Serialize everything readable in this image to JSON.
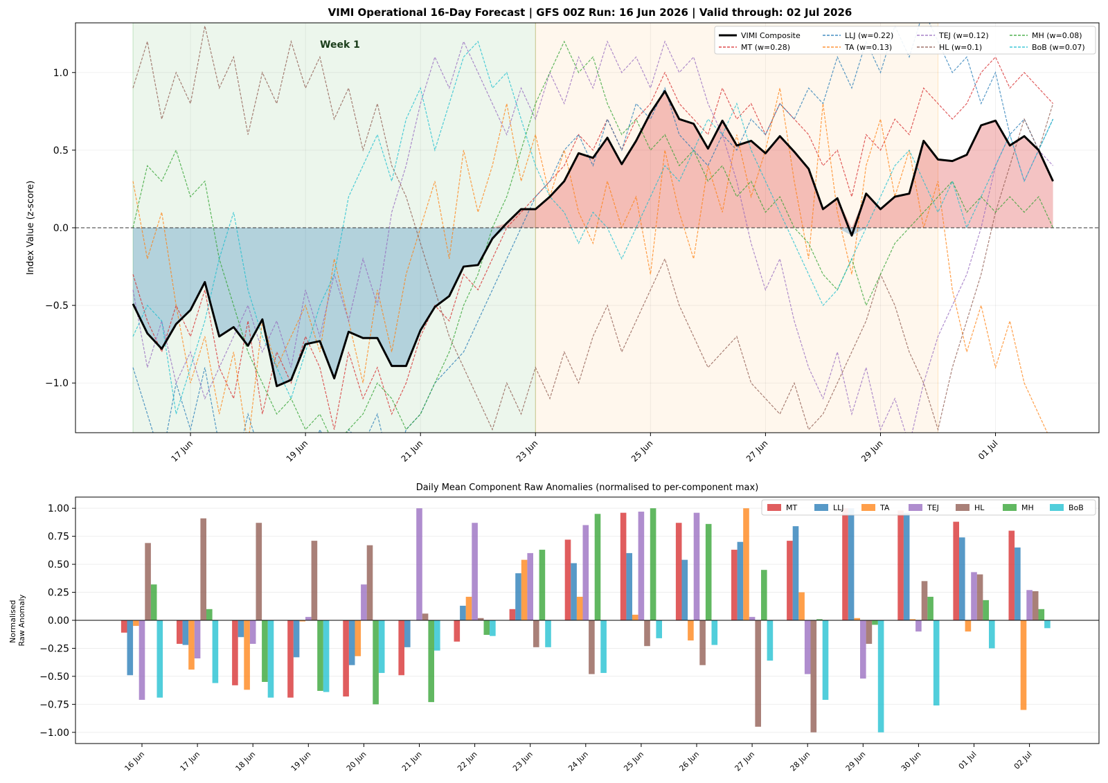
{
  "chart_data": [
    {
      "type": "line",
      "title": "VIMI Operational 16-Day Forecast  |  GFS 00Z Run: 16 Jun 2026  |  Valid through: 02 Jul 2026",
      "xlabel": "",
      "ylabel": "Index Value (z-score)",
      "x_start": "16 Jun 2026",
      "x_end": "02 Jul 2026",
      "xlim": [
        -1.0,
        16.8
      ],
      "ylim": [
        -1.32,
        1.32
      ],
      "yticks": [
        "−1.0",
        "−0.5",
        "0.0",
        "0.5",
        "1.0"
      ],
      "ytick_values": [
        -1.0,
        -0.5,
        0.0,
        0.5,
        1.0
      ],
      "xticks": [
        "17 Jun",
        "19 Jun",
        "21 Jun",
        "23 Jun",
        "25 Jun",
        "27 Jun",
        "29 Jun",
        "01 Jul"
      ],
      "xtick_values": [
        1,
        3,
        5,
        7,
        9,
        11,
        13,
        15
      ],
      "shaded_periods": [
        {
          "label": "Week 1",
          "start": 0,
          "end": 7,
          "color": "#2ca02c"
        },
        {
          "label": "",
          "start": 7,
          "end": 14,
          "color": "#ff9f1c"
        }
      ],
      "grid": true,
      "legend_position": "top-right",
      "composite": {
        "name": "VIMI Composite",
        "color": "#000000",
        "values": [
          -0.49,
          -0.68,
          -0.78,
          -0.62,
          -0.53,
          -0.35,
          -0.7,
          -0.64,
          -0.76,
          -0.59,
          -1.02,
          -0.98,
          -0.75,
          -0.73,
          -0.97,
          -0.67,
          -0.71,
          -0.71,
          -0.89,
          -0.89,
          -0.66,
          -0.51,
          -0.44,
          -0.25,
          -0.24,
          -0.07,
          0.03,
          0.12,
          0.12,
          0.2,
          0.3,
          0.48,
          0.45,
          0.58,
          0.41,
          0.56,
          0.74,
          0.88,
          0.7,
          0.67,
          0.51,
          0.69,
          0.53,
          0.56,
          0.48,
          0.59,
          0.49,
          0.38,
          0.12,
          0.19,
          -0.05,
          0.22,
          0.12,
          0.2,
          0.22,
          0.56,
          0.44,
          0.43,
          0.47,
          0.66,
          0.69,
          0.53,
          0.59,
          0.5,
          0.3
        ]
      },
      "series": [
        {
          "name": "MT (w=0.28)",
          "color": "#d62728",
          "values": [
            -0.3,
            -0.6,
            -0.8,
            -0.5,
            -0.7,
            -0.4,
            -0.9,
            -1.1,
            -0.6,
            -1.2,
            -0.8,
            -1.0,
            -0.7,
            -0.9,
            -1.3,
            -0.8,
            -1.1,
            -0.9,
            -1.2,
            -1.0,
            -0.7,
            -0.5,
            -0.6,
            -0.3,
            -0.4,
            -0.2,
            0.0,
            0.1,
            0.2,
            0.3,
            0.4,
            0.6,
            0.5,
            0.7,
            0.5,
            0.7,
            0.8,
            1.0,
            0.8,
            0.7,
            0.6,
            0.9,
            0.7,
            0.8,
            0.6,
            0.8,
            0.7,
            0.6,
            0.4,
            0.5,
            0.2,
            0.6,
            0.5,
            0.7,
            0.6,
            0.9,
            0.8,
            0.7,
            0.8,
            1.0,
            1.1,
            0.9,
            1.0,
            0.9,
            0.8
          ]
        },
        {
          "name": "LLJ (w=0.22)",
          "color": "#1f77b4",
          "values": [
            -0.9,
            -1.2,
            -1.5,
            -1.0,
            -1.3,
            -0.9,
            -1.4,
            -1.6,
            -1.2,
            -1.5,
            -1.7,
            -1.4,
            -1.6,
            -1.3,
            -1.5,
            -1.3,
            -1.4,
            -1.2,
            -1.6,
            -1.3,
            -1.2,
            -1.0,
            -0.9,
            -0.8,
            -0.6,
            -0.4,
            -0.2,
            0.0,
            0.2,
            0.3,
            0.5,
            0.6,
            0.4,
            0.7,
            0.5,
            0.8,
            0.7,
            0.9,
            0.6,
            0.5,
            0.4,
            0.6,
            0.5,
            0.7,
            0.6,
            0.8,
            0.7,
            0.9,
            0.8,
            1.1,
            0.9,
            1.2,
            1.0,
            1.3,
            1.1,
            1.4,
            1.2,
            1.0,
            1.1,
            0.8,
            1.0,
            0.6,
            0.7,
            0.5,
            0.7
          ]
        },
        {
          "name": "TA (w=0.13)",
          "color": "#ff7f0e",
          "values": [
            0.3,
            -0.2,
            0.1,
            -0.5,
            -1.0,
            -0.7,
            -1.2,
            -0.8,
            -1.4,
            -0.6,
            -0.9,
            -0.7,
            -0.5,
            -0.8,
            -0.2,
            -0.6,
            -1.0,
            -0.4,
            -0.8,
            -0.3,
            0.0,
            0.3,
            -0.2,
            0.5,
            0.1,
            0.4,
            0.8,
            0.3,
            0.6,
            0.2,
            0.5,
            0.1,
            -0.1,
            0.3,
            0.0,
            0.2,
            -0.3,
            0.5,
            0.1,
            -0.2,
            0.4,
            0.1,
            0.6,
            0.2,
            0.5,
            0.9,
            0.3,
            -0.2,
            0.8,
            0.1,
            -0.3,
            0.4,
            0.7,
            0.2,
            0.5,
            0.0,
            0.3,
            -0.4,
            -0.8,
            -0.5,
            -0.9,
            -0.6,
            -1.0,
            -1.2,
            -1.4
          ]
        },
        {
          "name": "TEJ (w=0.12)",
          "color": "#9467bd",
          "values": [
            -0.4,
            -0.9,
            -0.6,
            -1.0,
            -0.8,
            -1.1,
            -0.9,
            -0.7,
            -0.5,
            -0.8,
            -0.6,
            -0.9,
            -0.4,
            -0.7,
            -0.3,
            -0.6,
            -0.2,
            -0.5,
            0.1,
            0.4,
            0.8,
            1.1,
            0.9,
            1.2,
            1.0,
            0.8,
            0.6,
            0.9,
            0.7,
            1.0,
            0.8,
            1.1,
            0.9,
            1.2,
            1.0,
            1.1,
            0.9,
            1.2,
            1.0,
            1.1,
            0.8,
            0.6,
            0.3,
            -0.1,
            -0.4,
            -0.2,
            -0.6,
            -0.9,
            -1.1,
            -0.8,
            -1.2,
            -0.9,
            -1.3,
            -1.1,
            -1.4,
            -1.0,
            -0.7,
            -0.5,
            -0.3,
            0.0,
            0.4,
            0.6,
            0.3,
            0.5,
            0.4
          ]
        },
        {
          "name": "HL (w=0.1)",
          "color": "#8c564b",
          "values": [
            0.9,
            1.2,
            0.7,
            1.0,
            0.8,
            1.3,
            0.9,
            1.1,
            0.6,
            1.0,
            0.8,
            1.2,
            0.9,
            1.1,
            0.7,
            0.9,
            0.5,
            0.8,
            0.4,
            0.2,
            -0.1,
            -0.4,
            -0.7,
            -0.9,
            -1.1,
            -1.3,
            -1.0,
            -1.2,
            -0.9,
            -1.1,
            -0.8,
            -1.0,
            -0.7,
            -0.5,
            -0.8,
            -0.6,
            -0.4,
            -0.2,
            -0.5,
            -0.7,
            -0.9,
            -0.8,
            -0.7,
            -1.0,
            -1.1,
            -1.2,
            -1.0,
            -1.3,
            -1.2,
            -1.0,
            -0.8,
            -0.6,
            -0.3,
            -0.5,
            -0.8,
            -1.0,
            -1.3,
            -0.9,
            -0.6,
            -0.3,
            0.1,
            0.4,
            0.7,
            0.5,
            0.8
          ]
        },
        {
          "name": "MH (w=0.08)",
          "color": "#2ca02c",
          "values": [
            0.0,
            0.4,
            0.3,
            0.5,
            0.2,
            0.3,
            -0.2,
            -0.5,
            -0.8,
            -1.0,
            -1.2,
            -1.1,
            -1.3,
            -1.2,
            -1.4,
            -1.3,
            -1.2,
            -1.0,
            -1.1,
            -1.3,
            -1.2,
            -1.0,
            -0.8,
            -0.5,
            -0.3,
            0.0,
            0.2,
            0.5,
            0.8,
            1.0,
            1.2,
            1.0,
            1.1,
            0.8,
            0.6,
            0.7,
            0.5,
            0.6,
            0.4,
            0.5,
            0.3,
            0.4,
            0.2,
            0.3,
            0.1,
            0.2,
            0.0,
            -0.1,
            -0.3,
            -0.4,
            -0.2,
            -0.5,
            -0.3,
            -0.1,
            0.0,
            0.1,
            0.2,
            0.3,
            0.1,
            0.2,
            0.1,
            0.2,
            0.1,
            0.2,
            0.0
          ]
        },
        {
          "name": "BoB (w=0.07)",
          "color": "#17becf",
          "values": [
            -0.7,
            -0.5,
            -0.6,
            -1.2,
            -0.9,
            -0.6,
            -0.2,
            0.1,
            -0.4,
            -0.7,
            -0.9,
            -1.1,
            -0.8,
            -0.5,
            -0.3,
            0.2,
            0.4,
            0.6,
            0.3,
            0.7,
            0.9,
            0.5,
            0.8,
            1.1,
            1.2,
            0.9,
            1.0,
            0.7,
            0.4,
            0.2,
            0.1,
            -0.1,
            0.1,
            0.0,
            -0.2,
            0.0,
            0.2,
            0.4,
            0.3,
            0.5,
            0.7,
            0.6,
            0.8,
            0.5,
            0.3,
            0.1,
            -0.1,
            -0.3,
            -0.5,
            -0.4,
            -0.2,
            0.0,
            0.2,
            0.4,
            0.5,
            0.3,
            0.1,
            0.3,
            0.0,
            0.2,
            0.4,
            0.6,
            0.3,
            0.5,
            0.7
          ]
        }
      ]
    },
    {
      "type": "bar",
      "title": "Daily Mean Component Raw Anomalies (normalised to per-component max)",
      "xlabel": "",
      "ylabel": "Normalised Raw Anomaly",
      "ylim": [
        -1.1,
        1.1
      ],
      "yticks": [
        "−1.00",
        "−0.75",
        "−0.50",
        "−0.25",
        "0.00",
        "0.25",
        "0.50",
        "0.75",
        "1.00"
      ],
      "ytick_values": [
        -1.0,
        -0.75,
        -0.5,
        -0.25,
        0.0,
        0.25,
        0.5,
        0.75,
        1.0
      ],
      "categories": [
        "16 Jun",
        "17 Jun",
        "18 Jun",
        "19 Jun",
        "20 Jun",
        "21 Jun",
        "22 Jun",
        "23 Jun",
        "24 Jun",
        "25 Jun",
        "26 Jun",
        "27 Jun",
        "28 Jun",
        "29 Jun",
        "30 Jun",
        "01 Jul",
        "02 Jul"
      ],
      "grid": true,
      "legend_position": "top-right",
      "series": [
        {
          "name": "MT",
          "color": "#d62728",
          "values": [
            -0.11,
            -0.21,
            -0.58,
            -0.69,
            -0.68,
            -0.49,
            -0.19,
            0.1,
            0.72,
            0.96,
            0.87,
            0.63,
            0.71,
            1.0,
            0.98,
            0.88,
            0.8
          ]
        },
        {
          "name": "LLJ",
          "color": "#1f77b4",
          "values": [
            -0.49,
            -0.22,
            -0.15,
            -0.33,
            -0.4,
            -0.24,
            0.13,
            0.42,
            0.51,
            0.6,
            0.54,
            0.7,
            0.84,
            1.0,
            0.96,
            0.74,
            0.65
          ]
        },
        {
          "name": "TA",
          "color": "#ff7f0e",
          "values": [
            -0.05,
            -0.44,
            -0.62,
            -0.01,
            -0.32,
            0.0,
            0.21,
            0.54,
            0.21,
            0.05,
            -0.18,
            1.0,
            0.25,
            0.02,
            0.01,
            -0.1,
            -0.8
          ]
        },
        {
          "name": "TEJ",
          "color": "#9467bd",
          "values": [
            -0.71,
            -0.34,
            -0.21,
            0.03,
            0.32,
            1.0,
            0.87,
            0.6,
            0.85,
            0.97,
            0.96,
            0.03,
            -0.48,
            -0.52,
            -0.1,
            0.43,
            0.27
          ]
        },
        {
          "name": "HL",
          "color": "#8c564b",
          "values": [
            0.69,
            0.91,
            0.87,
            0.71,
            0.67,
            0.06,
            0.02,
            -0.24,
            -0.48,
            -0.23,
            -0.4,
            -0.95,
            -1.0,
            -0.21,
            0.35,
            0.41,
            0.26
          ]
        },
        {
          "name": "MH",
          "color": "#2ca02c",
          "values": [
            0.32,
            0.1,
            -0.55,
            -0.63,
            -0.75,
            -0.73,
            -0.13,
            0.63,
            0.95,
            1.0,
            0.86,
            0.45,
            0.01,
            -0.04,
            0.21,
            0.18,
            0.1
          ]
        },
        {
          "name": "BoB",
          "color": "#17becf",
          "values": [
            -0.69,
            -0.56,
            -0.69,
            -0.64,
            -0.47,
            -0.27,
            -0.14,
            -0.24,
            -0.47,
            -0.16,
            -0.22,
            -0.36,
            -0.71,
            -1.0,
            -0.76,
            -0.25,
            -0.07
          ]
        }
      ]
    }
  ]
}
